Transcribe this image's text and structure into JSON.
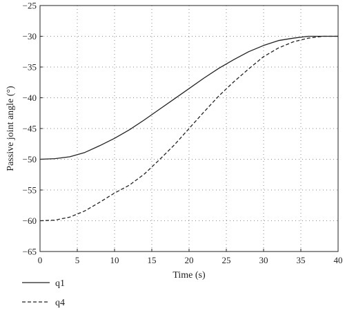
{
  "chart_data": {
    "type": "line",
    "xlabel": "Time (s)",
    "ylabel": "Passive joint angle (°)",
    "xlim": [
      0,
      40
    ],
    "ylim": [
      -65,
      -25
    ],
    "xticks": [
      0,
      5,
      10,
      15,
      20,
      25,
      30,
      35,
      40
    ],
    "yticks": [
      -25,
      -30,
      -35,
      -40,
      -45,
      -50,
      -55,
      -60,
      -65
    ],
    "grid": "dotted",
    "legend_position": "bottom-left, below plot",
    "series": [
      {
        "name": "q1",
        "style": "solid",
        "x": [
          0,
          2,
          4,
          6,
          8,
          10,
          12,
          14,
          16,
          18,
          20,
          22,
          24,
          26,
          28,
          30,
          32,
          34,
          36,
          38,
          40
        ],
        "y": [
          -50.0,
          -49.9,
          -49.6,
          -48.9,
          -47.8,
          -46.6,
          -45.2,
          -43.6,
          -41.9,
          -40.2,
          -38.5,
          -36.8,
          -35.2,
          -33.8,
          -32.5,
          -31.5,
          -30.7,
          -30.3,
          -30.0,
          -30.0,
          -30.0
        ]
      },
      {
        "name": "q4",
        "style": "dashed",
        "x": [
          0,
          2,
          4,
          6,
          8,
          10,
          12,
          14,
          16,
          18,
          20,
          22,
          24,
          26,
          28,
          30,
          32,
          34,
          36,
          38,
          40
        ],
        "y": [
          -60.0,
          -59.9,
          -59.4,
          -58.4,
          -57.0,
          -55.5,
          -54.2,
          -52.4,
          -50.1,
          -47.7,
          -45.0,
          -42.3,
          -39.7,
          -37.4,
          -35.3,
          -33.3,
          -31.9,
          -30.9,
          -30.3,
          -30.0,
          -30.0
        ]
      }
    ]
  }
}
